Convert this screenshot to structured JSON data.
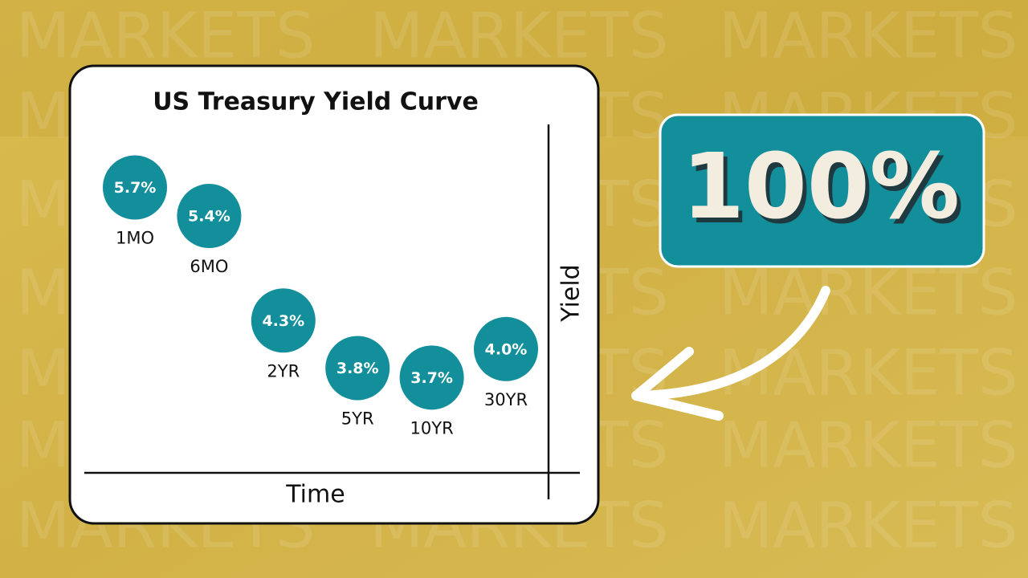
{
  "chart_data": {
    "type": "dot",
    "title": "US Treasury Yield Curve",
    "categories": [
      "1MO",
      "6MO",
      "2YR",
      "5YR",
      "10YR",
      "30YR"
    ],
    "values": [
      5.7,
      5.4,
      4.3,
      3.8,
      3.7,
      4.0
    ],
    "value_labels": [
      "5.7%",
      "5.4%",
      "4.3%",
      "3.8%",
      "3.7%",
      "4.0%"
    ],
    "color": "#138f9c",
    "ylim": [
      3.5,
      6.0
    ],
    "x_label": "Time",
    "y_label": "Yield"
  },
  "badge": "100%",
  "watermark": "MARKETS"
}
